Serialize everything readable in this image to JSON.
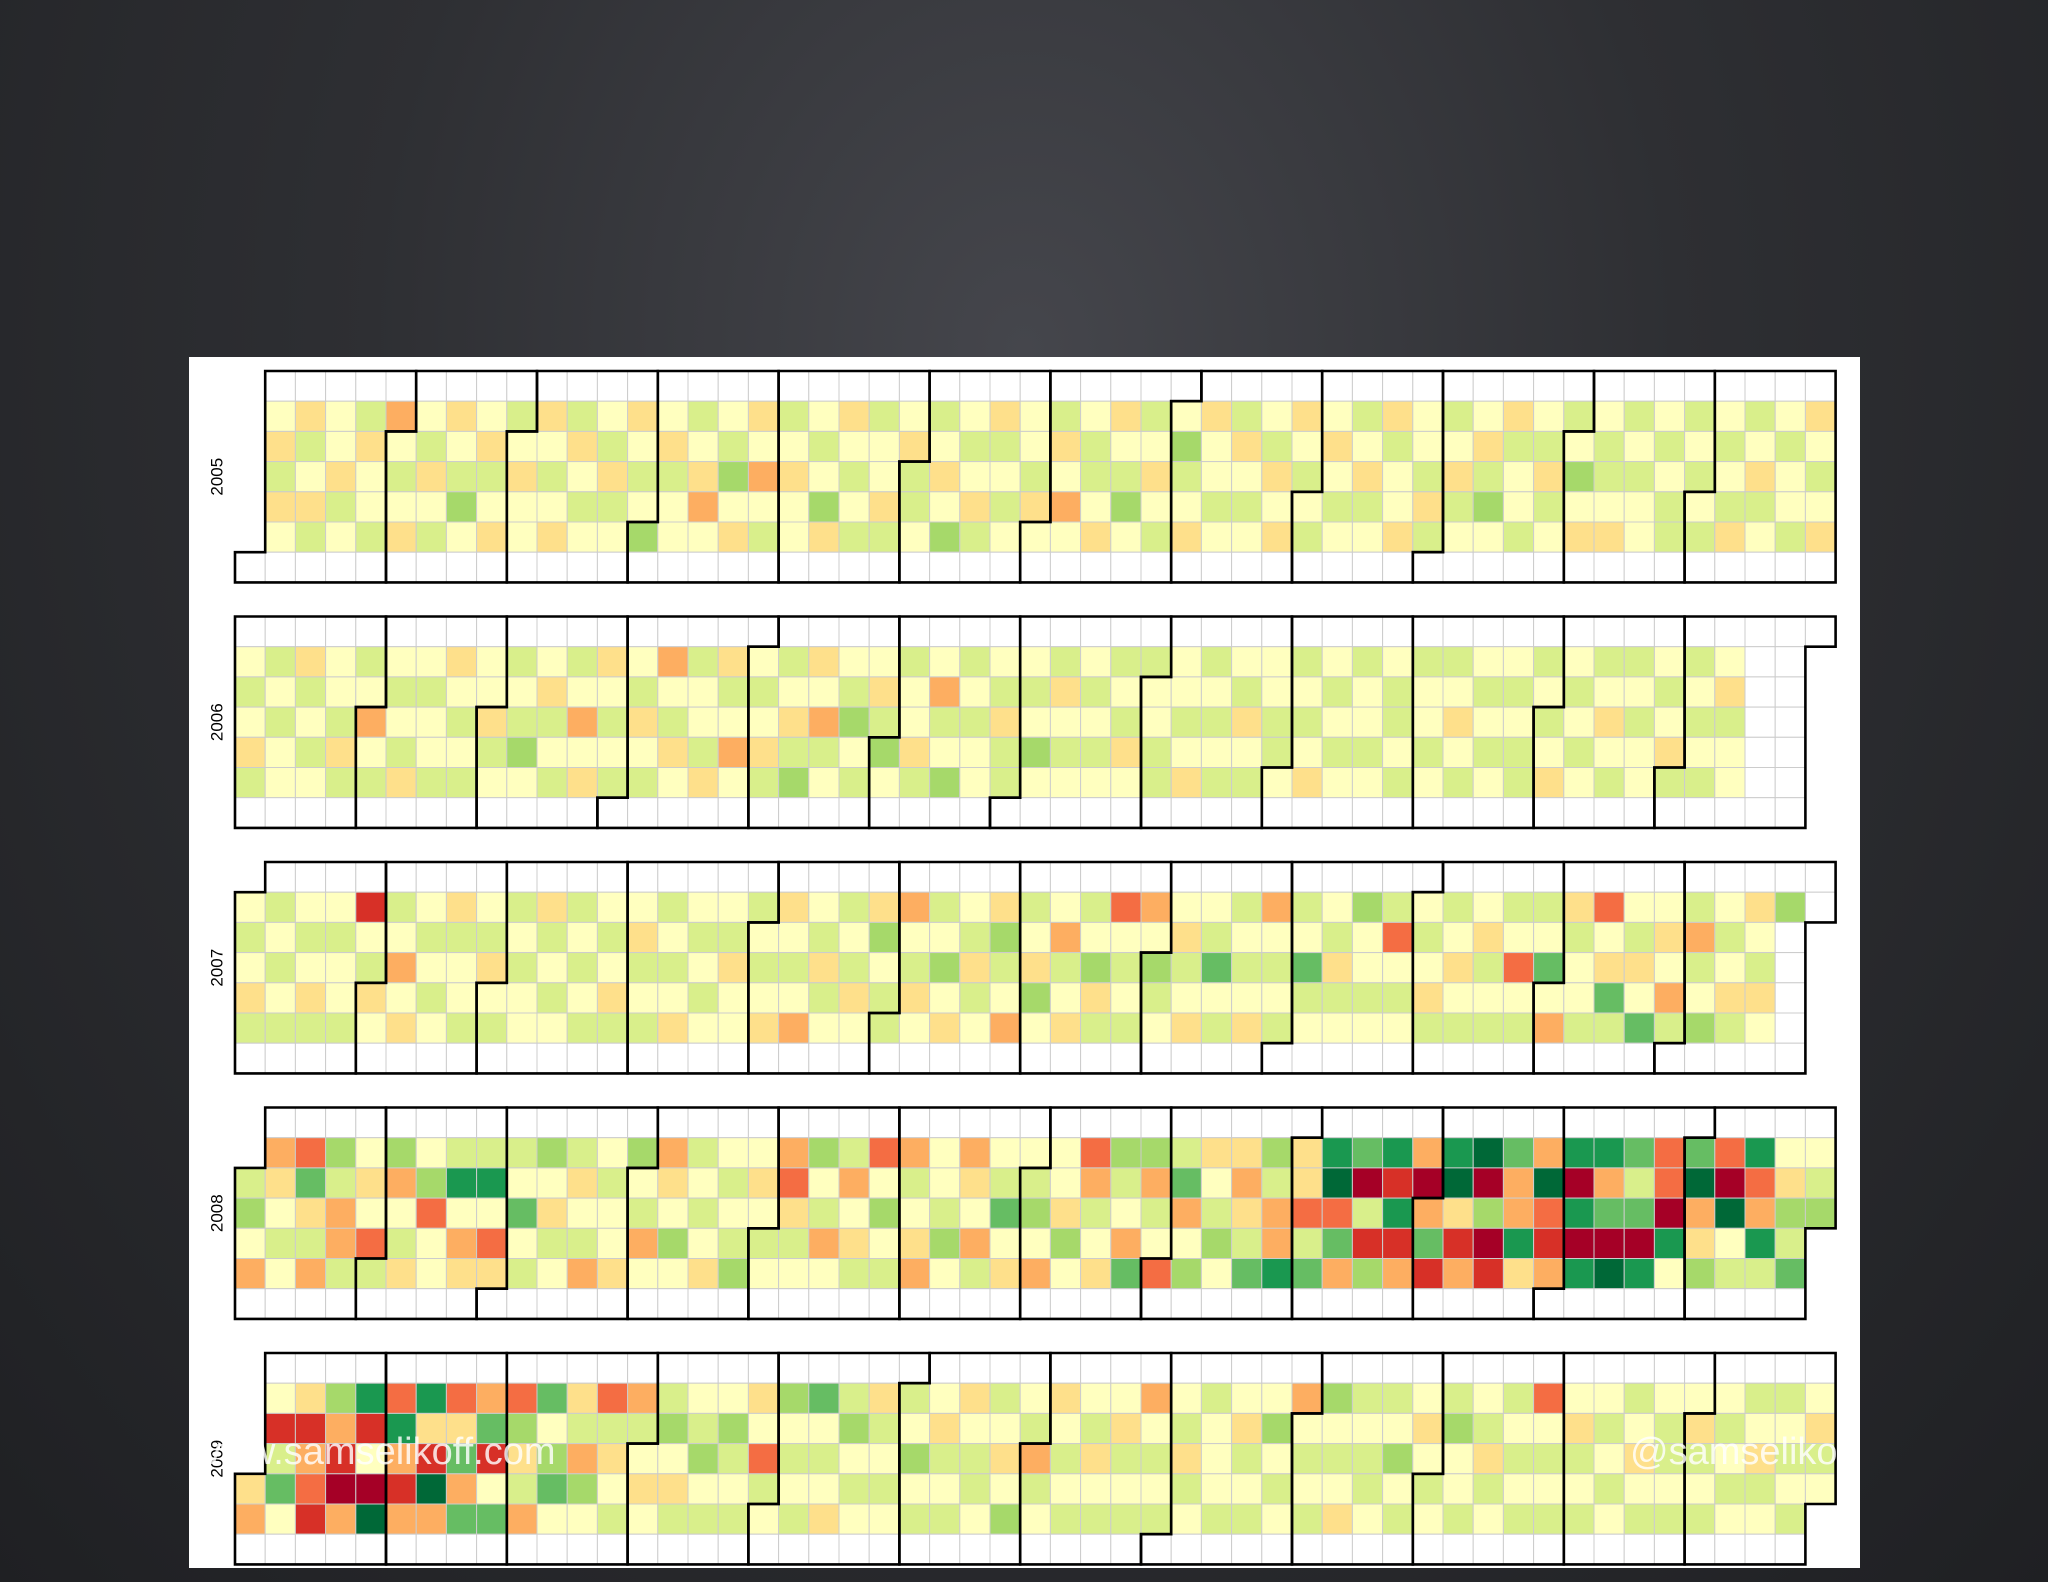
{
  "chart_data": {
    "type": "calendar",
    "colors": [
      "#a50026",
      "#d73027",
      "#f46d43",
      "#fdae61",
      "#fee08b",
      "#ffffbf",
      "#d9ef8b",
      "#a6d96a",
      "#66bd63",
      "#1a9850",
      "#006837"
    ],
    "years": [
      {
        "year": 2005,
        "values": [
          5,
          4,
          6,
          4,
          5,
          4,
          6,
          5,
          4,
          6,
          5,
          5,
          4,
          6,
          5,
          6,
          4,
          5,
          5,
          6,
          3,
          5,
          6,
          5,
          4,
          5,
          6,
          4,
          5,
          6,
          4,
          5,
          6,
          7,
          5,
          5,
          4,
          6,
          5,
          4,
          6,
          5,
          4,
          5,
          5,
          4,
          5,
          6,
          5,
          4,
          6,
          4,
          5,
          6,
          5,
          5,
          6,
          4,
          6,
          5,
          4,
          5,
          6,
          5,
          7,
          5,
          4,
          6,
          5,
          5,
          6,
          5,
          4,
          3,
          5,
          5,
          6,
          7,
          5,
          4,
          4,
          5,
          3,
          5,
          6,
          6,
          5,
          4,
          5,
          5,
          5,
          6,
          5,
          7,
          4,
          4,
          5,
          6,
          5,
          6,
          6,
          5,
          5,
          4,
          6,
          5,
          4,
          6,
          6,
          5,
          6,
          5,
          4,
          5,
          7,
          5,
          6,
          5,
          4,
          6,
          4,
          6,
          5,
          6,
          5,
          5,
          5,
          6,
          4,
          5,
          6,
          4,
          5,
          3,
          5,
          5,
          6,
          6,
          5,
          4,
          4,
          5,
          6,
          7,
          5,
          6,
          5,
          4,
          5,
          6,
          5,
          7,
          6,
          5,
          4,
          4,
          5,
          5,
          6,
          5,
          6,
          4,
          5,
          6,
          5,
          5,
          6,
          4,
          5,
          4,
          4,
          5,
          6,
          5,
          6,
          5,
          4,
          5,
          6,
          5,
          6,
          5,
          4,
          6,
          5,
          4,
          6,
          5,
          5,
          4,
          5,
          5,
          6,
          4,
          6,
          6,
          5,
          4,
          6,
          5,
          5,
          4,
          6,
          7,
          5,
          4,
          6,
          5,
          5,
          6,
          5,
          6,
          4,
          6,
          5,
          6,
          5,
          7,
          5,
          4,
          5,
          6,
          6,
          5,
          4,
          6,
          5,
          6,
          5,
          5,
          5,
          6,
          5,
          6,
          6,
          6,
          5,
          6,
          5,
          6,
          5,
          6,
          5,
          6,
          4,
          6,
          5,
          4,
          6,
          5,
          5,
          6,
          5,
          5,
          6,
          4,
          5,
          6,
          5,
          4
        ]
      },
      {
        "year": 2006,
        "values": [
          5,
          6,
          5,
          4,
          6,
          6,
          5,
          6,
          5,
          5,
          4,
          6,
          5,
          6,
          5,
          5,
          5,
          6,
          4,
          6,
          6,
          5,
          3,
          5,
          6,
          5,
          6,
          5,
          6,
          4,
          5,
          6,
          5,
          5,
          6,
          4,
          5,
          6,
          5,
          6,
          5,
          5,
          4,
          6,
          5,
          6,
          5,
          6,
          7,
          5,
          5,
          4,
          6,
          5,
          6,
          6,
          5,
          3,
          5,
          4,
          4,
          5,
          6,
          5,
          6,
          5,
          6,
          4,
          5,
          6,
          3,
          5,
          6,
          4,
          5,
          6,
          5,
          5,
          6,
          4,
          4,
          6,
          5,
          3,
          5,
          5,
          6,
          5,
          4,
          6,
          6,
          5,
          4,
          6,
          7,
          4,
          5,
          3,
          6,
          5,
          5,
          6,
          7,
          5,
          6,
          5,
          4,
          6,
          7,
          5,
          6,
          5,
          5,
          4,
          6,
          5,
          3,
          6,
          5,
          7,
          6,
          5,
          6,
          5,
          5,
          5,
          6,
          4,
          6,
          6,
          5,
          6,
          5,
          7,
          5,
          6,
          4,
          5,
          6,
          5,
          5,
          6,
          5,
          6,
          5,
          6,
          5,
          6,
          4,
          5,
          6,
          5,
          5,
          6,
          6,
          5,
          5,
          6,
          5,
          4,
          6,
          5,
          6,
          5,
          6,
          5,
          6,
          4,
          5,
          6,
          5,
          5,
          6,
          6,
          5,
          6,
          5,
          6,
          5,
          4,
          5,
          6,
          5,
          6,
          5,
          6,
          5,
          5,
          6,
          5,
          5,
          6,
          6,
          5,
          6,
          6,
          5,
          5,
          6,
          5,
          6,
          5,
          4,
          5,
          6,
          5,
          6,
          5,
          6,
          5,
          5,
          6,
          5,
          6,
          6,
          6,
          5,
          6,
          5,
          4,
          5,
          6,
          5,
          6,
          5,
          6,
          5,
          4,
          5,
          6,
          6,
          5,
          6,
          5,
          5,
          5,
          6,
          5,
          4,
          6,
          6,
          5,
          6,
          5,
          6,
          5,
          4,
          6,
          5,
          5
        ]
      },
      {
        "year": 2007,
        "values": [
          5,
          6,
          5,
          4,
          6,
          6,
          5,
          6,
          5,
          6,
          5,
          6,
          5,
          4,
          6,
          5,
          6,
          5,
          5,
          6,
          1,
          5,
          6,
          4,
          5,
          6,
          5,
          3,
          5,
          4,
          5,
          6,
          5,
          6,
          5,
          4,
          6,
          5,
          5,
          6,
          5,
          6,
          4,
          5,
          6,
          6,
          5,
          6,
          5,
          5,
          4,
          6,
          5,
          6,
          5,
          6,
          5,
          6,
          5,
          6,
          5,
          6,
          5,
          4,
          6,
          5,
          4,
          6,
          5,
          6,
          6,
          5,
          6,
          5,
          4,
          5,
          6,
          5,
          6,
          5,
          5,
          6,
          4,
          5,
          5,
          6,
          5,
          6,
          5,
          4,
          4,
          5,
          6,
          5,
          3,
          5,
          6,
          4,
          6,
          5,
          6,
          5,
          6,
          4,
          5,
          4,
          7,
          5,
          6,
          6,
          3,
          5,
          6,
          4,
          5,
          6,
          5,
          7,
          5,
          4,
          5,
          6,
          4,
          6,
          5,
          4,
          7,
          6,
          5,
          3,
          6,
          5,
          4,
          7,
          5,
          5,
          3,
          6,
          5,
          4,
          6,
          5,
          7,
          4,
          6,
          2,
          5,
          6,
          5,
          6,
          3,
          5,
          7,
          6,
          5,
          5,
          4,
          6,
          5,
          4,
          5,
          6,
          8,
          5,
          6,
          6,
          5,
          6,
          5,
          4,
          3,
          5,
          6,
          5,
          6,
          6,
          5,
          8,
          6,
          5,
          5,
          6,
          4,
          6,
          5,
          7,
          5,
          5,
          6,
          5,
          6,
          2,
          5,
          6,
          5,
          5,
          6,
          5,
          4,
          6,
          6,
          5,
          4,
          5,
          6,
          5,
          4,
          6,
          5,
          6,
          6,
          5,
          2,
          5,
          6,
          6,
          5,
          8,
          5,
          3,
          4,
          6,
          5,
          5,
          6,
          2,
          5,
          4,
          8,
          6,
          5,
          6,
          4,
          5,
          8,
          5,
          4,
          5,
          3,
          6,
          6,
          3,
          6,
          5,
          7,
          5,
          6,
          5,
          4,
          6,
          4,
          5,
          6,
          4,
          5,
          7
        ]
      },
      {
        "year": 2008,
        "values": [
          6,
          7,
          5,
          3,
          3,
          4,
          5,
          6,
          5,
          2,
          8,
          4,
          6,
          3,
          7,
          6,
          3,
          3,
          6,
          5,
          4,
          5,
          2,
          6,
          7,
          3,
          5,
          6,
          4,
          5,
          7,
          2,
          5,
          5,
          6,
          9,
          5,
          3,
          4,
          6,
          9,
          5,
          2,
          4,
          6,
          5,
          8,
          5,
          6,
          7,
          5,
          4,
          6,
          5,
          6,
          4,
          5,
          6,
          3,
          5,
          6,
          5,
          5,
          4,
          7,
          5,
          6,
          3,
          5,
          3,
          4,
          5,
          7,
          5,
          6,
          5,
          6,
          5,
          4,
          5,
          6,
          5,
          6,
          7,
          5,
          4,
          5,
          6,
          5,
          3,
          2,
          4,
          6,
          5,
          7,
          5,
          6,
          3,
          5,
          6,
          3,
          5,
          4,
          6,
          2,
          5,
          7,
          5,
          6,
          3,
          6,
          5,
          4,
          3,
          5,
          5,
          6,
          7,
          5,
          3,
          4,
          5,
          3,
          6,
          5,
          6,
          8,
          5,
          4,
          5,
          6,
          7,
          5,
          3,
          5,
          5,
          4,
          7,
          5,
          2,
          3,
          6,
          5,
          4,
          7,
          6,
          5,
          3,
          8,
          7,
          3,
          6,
          5,
          2,
          6,
          8,
          3,
          5,
          7,
          4,
          5,
          6,
          7,
          5,
          4,
          3,
          4,
          6,
          8,
          7,
          6,
          3,
          3,
          9,
          4,
          4,
          2,
          6,
          8,
          9,
          10,
          2,
          8,
          3,
          8,
          0,
          6,
          1,
          7,
          9,
          1,
          9,
          1,
          3,
          3,
          0,
          3,
          8,
          1,
          9,
          10,
          4,
          1,
          3,
          10,
          0,
          7,
          0,
          1,
          8,
          3,
          3,
          9,
          4,
          3,
          10,
          2,
          1,
          3,
          9,
          0,
          9,
          0,
          9,
          9,
          3,
          8,
          0,
          10,
          8,
          6,
          8,
          0,
          9,
          2,
          2,
          0,
          9,
          5,
          8,
          10,
          3,
          4,
          7,
          2,
          0,
          10,
          5,
          6,
          9,
          2,
          3,
          9,
          6,
          5,
          4,
          7,
          6,
          8,
          5,
          6,
          7
        ]
      },
      {
        "year": 2009,
        "values": [
          4,
          3,
          5,
          1,
          6,
          8,
          5,
          4,
          1,
          3,
          2,
          1,
          7,
          3,
          1,
          0,
          3,
          9,
          1,
          5,
          0,
          10,
          2,
          9,
          3,
          1,
          3,
          9,
          4,
          1,
          10,
          3,
          2,
          4,
          8,
          3,
          8,
          3,
          8,
          1,
          5,
          8,
          2,
          7,
          4,
          6,
          3,
          8,
          5,
          7,
          8,
          5,
          4,
          6,
          3,
          7,
          5,
          2,
          6,
          4,
          5,
          6,
          3,
          6,
          5,
          4,
          5,
          6,
          7,
          5,
          4,
          6,
          5,
          6,
          7,
          5,
          6,
          5,
          7,
          6,
          5,
          6,
          4,
          5,
          2,
          6,
          5,
          7,
          5,
          6,
          5,
          6,
          8,
          5,
          6,
          5,
          4,
          6,
          7,
          5,
          6,
          5,
          4,
          6,
          5,
          6,
          5,
          6,
          5,
          7,
          5,
          6,
          5,
          4,
          6,
          5,
          6,
          4,
          5,
          6,
          6,
          5,
          6,
          5,
          4,
          5,
          7,
          5,
          6,
          3,
          6,
          5,
          4,
          5,
          6,
          5,
          6,
          5,
          6,
          4,
          5,
          6,
          5,
          4,
          6,
          5,
          6,
          3,
          5,
          6,
          5,
          6,
          5,
          6,
          4,
          6,
          5,
          6,
          5,
          5,
          5,
          6,
          5,
          4,
          6,
          5,
          6,
          5,
          7,
          5,
          6,
          5,
          3,
          5,
          6,
          5,
          6,
          7,
          5,
          6,
          5,
          4,
          6,
          5,
          6,
          6,
          5,
          6,
          5,
          7,
          5,
          6,
          5,
          4,
          5,
          6,
          5,
          6,
          7,
          5,
          5,
          6,
          5,
          6,
          4,
          6,
          5,
          6,
          5,
          6,
          5,
          6,
          2,
          5,
          6,
          5,
          6,
          5,
          4,
          6,
          5,
          6,
          5,
          6,
          5,
          6,
          5,
          6,
          5,
          4,
          5,
          6,
          5,
          6,
          6,
          5,
          6,
          5,
          4,
          6,
          5,
          6,
          5,
          6,
          5,
          6,
          5,
          6,
          5,
          4,
          6,
          5,
          6,
          5,
          6,
          5,
          6,
          5,
          4,
          6,
          5
        ]
      }
    ]
  },
  "watermark": {
    "left": "www.samselikoff.com",
    "right": "@samselikoff"
  }
}
